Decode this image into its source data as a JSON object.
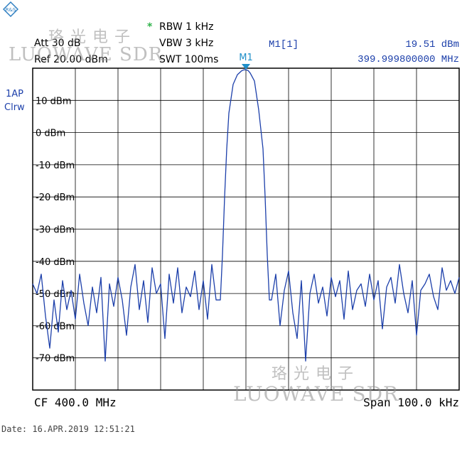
{
  "header": {
    "att": "Att  30 dB",
    "ref": "Ref  20.00 dBm",
    "rbw_star": "*",
    "rbw": "RBW 1 kHz",
    "vbw": "VBW 3 kHz",
    "swt": "SWT 100ms",
    "marker_title": "M1[1]",
    "marker_level": "19.51 dBm",
    "marker_freq": "399.999800000 MHz",
    "marker_tag": "M1"
  },
  "side": {
    "trace_line1": "1AP",
    "trace_line2": "Clrw"
  },
  "footer": {
    "cf": "CF 400.0 MHz",
    "span": "Span 100.0 kHz",
    "date": "Date: 16.APR.2019  12:51:21"
  },
  "watermark": {
    "cn": "珞 光 电 子",
    "en": "LUOWAVE SDR"
  },
  "colors": {
    "trace": "#1c3faa",
    "grid": "#000000",
    "marker": "#1f8fc9",
    "text_blue": "#1c3faa"
  },
  "chart_data": {
    "type": "line",
    "title": "",
    "xlabel": "",
    "ylabel": "",
    "ylim": [
      -80,
      20
    ],
    "ytick_labels": [
      "10 dBm",
      "0 dBm",
      "-10 dBm",
      "-20 dBm",
      "-30 dBm",
      "-40 dBm",
      "-50 dBm",
      "-60 dBm",
      "-70 dBm"
    ],
    "yticks": [
      10,
      0,
      -10,
      -20,
      -30,
      -40,
      -50,
      -60,
      -70
    ],
    "x_center_mhz": 400.0,
    "x_span_khz": 100.0,
    "grid": true,
    "series": [
      {
        "values_x_offset_khz": [
          -50.0,
          -49.0,
          -48.0,
          -47.0,
          -46.0,
          -45.0,
          -44.0,
          -43.0,
          -42.0,
          -41.0,
          -40.0,
          -39.0,
          -38.0,
          -37.0,
          -36.0,
          -35.0,
          -34.0,
          -33.0,
          -32.0,
          -31.0,
          -30.0,
          -29.0,
          -28.0,
          -27.0,
          -26.0,
          -25.0,
          -24.0,
          -23.0,
          -22.0,
          -21.0,
          -20.0,
          -19.0,
          -18.0,
          -17.0,
          -16.0,
          -15.0,
          -14.0,
          -13.0,
          -12.0,
          -11.0,
          -10.0,
          -9.0,
          -8.0,
          -7.0,
          -6.0,
          -5.5,
          -5.0,
          -4.5,
          -4.0,
          -3.0,
          -2.0,
          -1.0,
          -0.5,
          0.0,
          0.5,
          1.0,
          2.0,
          3.0,
          4.0,
          4.5,
          5.0,
          5.5,
          6.0,
          7.0,
          8.0,
          9.0,
          10.0,
          11.0,
          12.0,
          13.0,
          14.0,
          15.0,
          16.0,
          17.0,
          18.0,
          19.0,
          20.0,
          21.0,
          22.0,
          23.0,
          24.0,
          25.0,
          26.0,
          27.0,
          28.0,
          29.0,
          30.0,
          31.0,
          32.0,
          33.0,
          34.0,
          35.0,
          36.0,
          37.0,
          38.0,
          39.0,
          40.0,
          41.0,
          42.0,
          43.0,
          44.0,
          45.0,
          46.0,
          47.0,
          48.0,
          49.0,
          50.0
        ],
        "values_dbm": [
          -47,
          -50,
          -44,
          -57,
          -67,
          -52,
          -62,
          -46,
          -55,
          -49,
          -58,
          -44,
          -53,
          -60,
          -48,
          -56,
          -45,
          -71,
          -47,
          -54,
          -45,
          -52,
          -63,
          -48,
          -41,
          -55,
          -46,
          -59,
          -42,
          -50,
          -47,
          -64,
          -44,
          -53,
          -42,
          -56,
          -48,
          -51,
          -43,
          -55,
          -46,
          -58,
          -41,
          -52,
          -52,
          -38,
          -20,
          -5,
          6,
          15,
          18,
          19.2,
          19.5,
          19.51,
          19.3,
          18.5,
          16,
          7,
          -5,
          -20,
          -38,
          -52,
          -52,
          -44,
          -60,
          -49,
          -43,
          -56,
          -64,
          -46,
          -71,
          -50,
          -44,
          -53,
          -48,
          -57,
          -45,
          -51,
          -46,
          -58,
          -43,
          -55,
          -49,
          -47,
          -54,
          -44,
          -52,
          -46,
          -61,
          -48,
          -45,
          -53,
          -41,
          -50,
          -56,
          -46,
          -63,
          -49,
          -47,
          -44,
          -51,
          -55,
          -42,
          -49,
          -46,
          -50,
          -45
        ]
      }
    ]
  }
}
